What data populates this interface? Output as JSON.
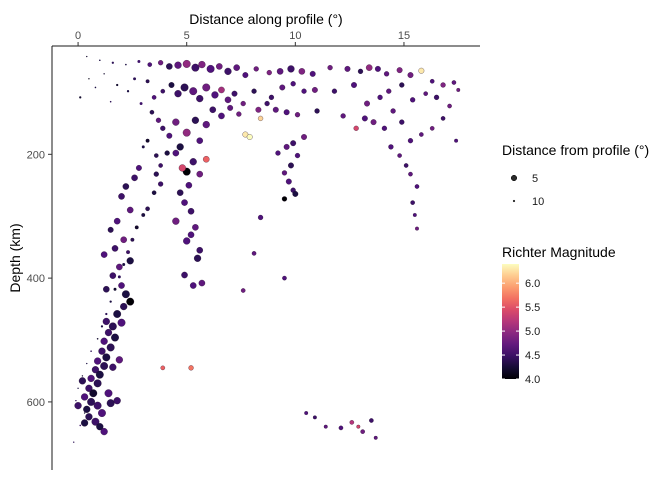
{
  "chart_data": {
    "type": "scatter",
    "title": "",
    "xlabel": "Distance along profile (°)",
    "ylabel": "Depth (km)",
    "x_axis_position": "top",
    "y_reversed": true,
    "xlim": [
      -1.2,
      18.5
    ],
    "ylim": [
      25,
      710
    ],
    "x_ticks": [
      0,
      5,
      10,
      15
    ],
    "x_tick_labels": [
      "0",
      "5",
      "10",
      "15"
    ],
    "y_ticks": [
      200,
      400,
      600
    ],
    "y_tick_labels": [
      "200",
      "400",
      "600"
    ],
    "grid": false,
    "colorscale": "magma",
    "size_legend": {
      "title": "Distance from profile (°)",
      "entries": [
        {
          "label": "5",
          "value": 5
        },
        {
          "label": "10",
          "value": 10
        }
      ]
    },
    "color_legend": {
      "title": "Richter Magnitude",
      "range": [
        4.0,
        6.4
      ],
      "ticks": [
        4.0,
        4.5,
        5.0,
        5.5,
        6.0
      ],
      "tick_labels": [
        "4.0",
        "4.5",
        "5.0",
        "5.5",
        "6.0"
      ]
    },
    "columns": [
      "distance_along_profile",
      "depth_km",
      "distance_from_profile",
      "magnitude"
    ],
    "points": [
      [
        0.4,
        42,
        12,
        4.2
      ],
      [
        1.0,
        48,
        11,
        4.3
      ],
      [
        1.6,
        52,
        10,
        4.4
      ],
      [
        2.2,
        55,
        11,
        4.3
      ],
      [
        2.8,
        50,
        9,
        4.5
      ],
      [
        3.3,
        55,
        7,
        4.6
      ],
      [
        3.8,
        52,
        6,
        4.8
      ],
      [
        4.2,
        58,
        4,
        4.4
      ],
      [
        4.6,
        56,
        3,
        4.7
      ],
      [
        5.0,
        54,
        2,
        5.0
      ],
      [
        5.4,
        60,
        2,
        4.5
      ],
      [
        5.7,
        55,
        3,
        4.9
      ],
      [
        6.1,
        62,
        2,
        4.6
      ],
      [
        6.5,
        58,
        4,
        4.8
      ],
      [
        6.9,
        66,
        3,
        4.5
      ],
      [
        7.3,
        60,
        4,
        4.7
      ],
      [
        7.7,
        72,
        5,
        4.6
      ],
      [
        8.2,
        62,
        6,
        4.8
      ],
      [
        8.8,
        68,
        6,
        4.9
      ],
      [
        9.3,
        66,
        4,
        4.7
      ],
      [
        9.8,
        62,
        3,
        4.5
      ],
      [
        10.3,
        66,
        4,
        4.9
      ],
      [
        10.8,
        70,
        5,
        4.6
      ],
      [
        11.6,
        60,
        6,
        4.8
      ],
      [
        12.4,
        62,
        5,
        4.7
      ],
      [
        13.0,
        66,
        6,
        4.4
      ],
      [
        13.4,
        60,
        4,
        5.0
      ],
      [
        13.8,
        62,
        5,
        4.6
      ],
      [
        14.2,
        70,
        6,
        4.7
      ],
      [
        14.8,
        64,
        5,
        4.9
      ],
      [
        15.3,
        72,
        5,
        4.8
      ],
      [
        15.8,
        65,
        5,
        6.3
      ],
      [
        16.3,
        82,
        7,
        4.6
      ],
      [
        16.8,
        88,
        6,
        4.9
      ],
      [
        17.3,
        84,
        7,
        4.7
      ],
      [
        17.5,
        96,
        8,
        4.8
      ],
      [
        0.1,
        108,
        10,
        4.2
      ],
      [
        0.5,
        78,
        12,
        4.1
      ],
      [
        0.8,
        92,
        11,
        4.3
      ],
      [
        1.2,
        70,
        12,
        4.2
      ],
      [
        1.5,
        115,
        11,
        4.4
      ],
      [
        1.8,
        88,
        10,
        4.2
      ],
      [
        2.3,
        98,
        10,
        4.3
      ],
      [
        2.6,
        78,
        9,
        4.4
      ],
      [
        2.9,
        118,
        9,
        4.5
      ],
      [
        3.2,
        82,
        8,
        4.4
      ],
      [
        3.5,
        108,
        7,
        4.6
      ],
      [
        3.9,
        98,
        7,
        4.5
      ],
      [
        4.3,
        88,
        5,
        4.3
      ],
      [
        4.6,
        102,
        3,
        4.5
      ],
      [
        4.9,
        92,
        2,
        4.4
      ],
      [
        5.3,
        98,
        2,
        4.7
      ],
      [
        5.6,
        110,
        3,
        4.5
      ],
      [
        5.9,
        92,
        2,
        4.8
      ],
      [
        6.3,
        104,
        3,
        4.6
      ],
      [
        6.6,
        96,
        4,
        5.1
      ],
      [
        6.9,
        112,
        4,
        4.7
      ],
      [
        7.2,
        102,
        5,
        4.5
      ],
      [
        7.6,
        118,
        6,
        4.8
      ],
      [
        8.1,
        98,
        6,
        4.4
      ],
      [
        8.9,
        108,
        6,
        4.5
      ],
      [
        9.4,
        92,
        5,
        4.7
      ],
      [
        9.9,
        86,
        6,
        4.6
      ],
      [
        10.4,
        98,
        6,
        4.6
      ],
      [
        10.9,
        96,
        5,
        4.8
      ],
      [
        11.8,
        98,
        6,
        4.5
      ],
      [
        12.7,
        88,
        5,
        4.6
      ],
      [
        13.3,
        118,
        5,
        4.8
      ],
      [
        13.9,
        108,
        6,
        4.6
      ],
      [
        14.3,
        98,
        6,
        4.7
      ],
      [
        14.9,
        88,
        6,
        4.4
      ],
      [
        15.4,
        112,
        6,
        4.6
      ],
      [
        16.0,
        102,
        7,
        4.7
      ],
      [
        16.5,
        108,
        6,
        4.5
      ],
      [
        17.1,
        122,
        7,
        4.8
      ],
      [
        3.4,
        132,
        7,
        4.4
      ],
      [
        3.7,
        145,
        6,
        4.7
      ],
      [
        3.9,
        158,
        6,
        4.5
      ],
      [
        4.2,
        170,
        5,
        4.6
      ],
      [
        4.5,
        148,
        3,
        4.8
      ],
      [
        4.7,
        188,
        3,
        4.3
      ],
      [
        5.0,
        165,
        2,
        5.0
      ],
      [
        5.4,
        145,
        3,
        4.4
      ],
      [
        5.6,
        178,
        4,
        4.6
      ],
      [
        5.9,
        152,
        3,
        4.7
      ],
      [
        6.2,
        128,
        4,
        4.5
      ],
      [
        6.6,
        138,
        4,
        4.6
      ],
      [
        7.0,
        125,
        5,
        4.7
      ],
      [
        7.4,
        135,
        6,
        4.8
      ],
      [
        7.7,
        168,
        5,
        6.3
      ],
      [
        7.9,
        172,
        5,
        6.4
      ],
      [
        8.3,
        128,
        5,
        4.9
      ],
      [
        8.7,
        118,
        6,
        4.5
      ],
      [
        8.4,
        142,
        6,
        6.2
      ],
      [
        9.1,
        128,
        5,
        4.7
      ],
      [
        9.6,
        132,
        5,
        4.6
      ],
      [
        10.1,
        136,
        6,
        4.8
      ],
      [
        11.0,
        130,
        6,
        4.4
      ],
      [
        12.2,
        138,
        6,
        4.7
      ],
      [
        12.8,
        158,
        6,
        5.4
      ],
      [
        13.2,
        142,
        5,
        4.6
      ],
      [
        13.6,
        148,
        5,
        4.8
      ],
      [
        14.1,
        158,
        6,
        4.6
      ],
      [
        14.5,
        130,
        6,
        4.7
      ],
      [
        14.9,
        148,
        6,
        4.5
      ],
      [
        15.3,
        178,
        6,
        4.6
      ],
      [
        15.8,
        168,
        7,
        4.7
      ],
      [
        16.3,
        158,
        7,
        4.8
      ],
      [
        16.8,
        142,
        7,
        4.5
      ],
      [
        17.4,
        178,
        8,
        4.6
      ],
      [
        3.0,
        188,
        9,
        4.3
      ],
      [
        3.2,
        178,
        8,
        4.2
      ],
      [
        3.6,
        202,
        7,
        4.4
      ],
      [
        3.8,
        218,
        7,
        4.5
      ],
      [
        4.1,
        198,
        6,
        4.3
      ],
      [
        4.5,
        198,
        4,
        4.6
      ],
      [
        5.0,
        228,
        2,
        4.0
      ],
      [
        5.3,
        212,
        3,
        4.5
      ],
      [
        5.9,
        208,
        4,
        5.6
      ],
      [
        5.6,
        232,
        4,
        4.8
      ],
      [
        9.2,
        198,
        6,
        4.6
      ],
      [
        9.6,
        188,
        5,
        4.7
      ],
      [
        9.9,
        182,
        5,
        4.5
      ],
      [
        10.1,
        202,
        6,
        4.6
      ],
      [
        10.4,
        172,
        5,
        4.8
      ],
      [
        9.8,
        218,
        5,
        4.4
      ],
      [
        9.5,
        230,
        6,
        4.7
      ],
      [
        9.7,
        244,
        5,
        4.6
      ],
      [
        9.9,
        258,
        6,
        4.5
      ],
      [
        9.5,
        272,
        6,
        4.0
      ],
      [
        10.0,
        264,
        5,
        4.3
      ],
      [
        14.4,
        188,
        6,
        4.6
      ],
      [
        14.8,
        202,
        7,
        4.7
      ],
      [
        15.1,
        218,
        7,
        4.5
      ],
      [
        15.3,
        232,
        7,
        4.7
      ],
      [
        15.6,
        252,
        7,
        4.6
      ],
      [
        15.4,
        278,
        7,
        4.5
      ],
      [
        15.5,
        298,
        8,
        4.6
      ],
      [
        15.6,
        320,
        8,
        4.8
      ],
      [
        4.7,
        262,
        4,
        4.4
      ],
      [
        4.9,
        278,
        4,
        4.6
      ],
      [
        5.2,
        292,
        4,
        4.5
      ],
      [
        5.4,
        318,
        4,
        4.7
      ],
      [
        5.0,
        340,
        3,
        4.6
      ],
      [
        5.6,
        355,
        4,
        4.5
      ],
      [
        5.5,
        368,
        3,
        4.4
      ],
      [
        4.9,
        395,
        4,
        4.5
      ],
      [
        5.3,
        412,
        4,
        4.6
      ],
      [
        5.7,
        408,
        4,
        4.7
      ],
      [
        5.2,
        330,
        4,
        4.6
      ],
      [
        4.5,
        308,
        3,
        4.8
      ],
      [
        4.8,
        222,
        3,
        5.4
      ],
      [
        5.1,
        250,
        4,
        4.6
      ],
      [
        3.6,
        232,
        6,
        4.4
      ],
      [
        3.8,
        248,
        6,
        4.5
      ],
      [
        3.5,
        262,
        7,
        4.3
      ],
      [
        3.2,
        288,
        7,
        4.4
      ],
      [
        3.0,
        298,
        8,
        4.3
      ],
      [
        2.7,
        318,
        8,
        4.2
      ],
      [
        2.5,
        338,
        8,
        4.4
      ],
      [
        2.3,
        358,
        8,
        4.5
      ],
      [
        2.1,
        378,
        9,
        4.3
      ],
      [
        1.9,
        398,
        9,
        4.4
      ],
      [
        1.7,
        418,
        9,
        4.2
      ],
      [
        1.5,
        438,
        10,
        4.3
      ],
      [
        1.3,
        458,
        10,
        4.4
      ],
      [
        1.1,
        478,
        10,
        4.3
      ],
      [
        0.9,
        498,
        11,
        4.2
      ],
      [
        0.6,
        518,
        11,
        4.4
      ],
      [
        0.4,
        538,
        12,
        4.3
      ],
      [
        0.2,
        558,
        12,
        4.2
      ],
      [
        0.0,
        578,
        12,
        4.3
      ],
      [
        -0.1,
        598,
        12,
        4.4
      ],
      [
        0.3,
        618,
        12,
        4.2
      ],
      [
        0.1,
        638,
        11,
        4.5
      ],
      [
        -0.2,
        665,
        12,
        4.4
      ],
      [
        2.8,
        222,
        5,
        4.6
      ],
      [
        2.6,
        238,
        4,
        4.5
      ],
      [
        2.2,
        252,
        4,
        4.4
      ],
      [
        2.0,
        268,
        4,
        4.5
      ],
      [
        2.4,
        290,
        4,
        4.7
      ],
      [
        1.8,
        308,
        4,
        4.6
      ],
      [
        1.5,
        322,
        5,
        4.4
      ],
      [
        2.1,
        338,
        4,
        4.8
      ],
      [
        1.7,
        352,
        4,
        4.5
      ],
      [
        1.2,
        362,
        4,
        4.6
      ],
      [
        2.4,
        372,
        3,
        4.3
      ],
      [
        1.9,
        382,
        4,
        4.7
      ],
      [
        1.6,
        396,
        4,
        4.5
      ],
      [
        2.0,
        412,
        4,
        4.6
      ],
      [
        1.3,
        418,
        4,
        4.4
      ],
      [
        2.2,
        426,
        2,
        4.3
      ],
      [
        2.4,
        438,
        2,
        4.0
      ],
      [
        2.1,
        446,
        3,
        4.4
      ],
      [
        1.8,
        458,
        2,
        4.3
      ],
      [
        2.0,
        472,
        2,
        4.6
      ],
      [
        1.6,
        478,
        2,
        4.4
      ],
      [
        1.4,
        488,
        3,
        4.5
      ],
      [
        1.7,
        496,
        2,
        4.3
      ],
      [
        1.2,
        502,
        3,
        4.6
      ],
      [
        1.5,
        512,
        2,
        4.4
      ],
      [
        1.1,
        518,
        3,
        4.5
      ],
      [
        1.3,
        528,
        2,
        4.3
      ],
      [
        0.9,
        534,
        3,
        4.6
      ],
      [
        1.2,
        542,
        2,
        4.4
      ],
      [
        0.8,
        548,
        3,
        4.5
      ],
      [
        1.0,
        556,
        2,
        4.3
      ],
      [
        0.6,
        562,
        3,
        4.6
      ],
      [
        0.9,
        570,
        2,
        4.4
      ],
      [
        0.5,
        578,
        3,
        4.5
      ],
      [
        0.7,
        586,
        2,
        4.2
      ],
      [
        0.3,
        592,
        3,
        4.6
      ],
      [
        0.6,
        600,
        2,
        4.4
      ],
      [
        0.9,
        606,
        2,
        4.5
      ],
      [
        0.4,
        612,
        3,
        4.3
      ],
      [
        1.1,
        618,
        2,
        4.6
      ],
      [
        0.5,
        624,
        3,
        4.4
      ],
      [
        0.8,
        632,
        2,
        4.5
      ],
      [
        1.0,
        640,
        3,
        4.3
      ],
      [
        1.2,
        648,
        3,
        4.6
      ],
      [
        1.5,
        602,
        2,
        4.4
      ],
      [
        1.8,
        598,
        3,
        4.5
      ],
      [
        1.4,
        586,
        2,
        4.6
      ],
      [
        0.2,
        566,
        3,
        4.4
      ],
      [
        0.0,
        606,
        3,
        4.5
      ],
      [
        0.3,
        634,
        3,
        4.3
      ],
      [
        1.6,
        544,
        3,
        4.5
      ],
      [
        1.9,
        532,
        3,
        4.7
      ],
      [
        1.3,
        470,
        3,
        4.5
      ],
      [
        3.9,
        545,
        7,
        5.6
      ],
      [
        5.2,
        545,
        6,
        5.7
      ],
      [
        8.4,
        302,
        6,
        4.6
      ],
      [
        8.1,
        360,
        7,
        4.7
      ],
      [
        7.6,
        420,
        7,
        4.8
      ],
      [
        9.5,
        400,
        7,
        4.6
      ],
      [
        10.5,
        618,
        8,
        4.6
      ],
      [
        10.9,
        625,
        8,
        4.5
      ],
      [
        11.4,
        640,
        8,
        4.7
      ],
      [
        12.1,
        642,
        7,
        4.6
      ],
      [
        12.6,
        633,
        7,
        5.2
      ],
      [
        13.1,
        648,
        7,
        4.8
      ],
      [
        13.5,
        630,
        7,
        4.5
      ],
      [
        13.7,
        658,
        8,
        4.7
      ],
      [
        12.9,
        640,
        8,
        5.4
      ]
    ]
  }
}
